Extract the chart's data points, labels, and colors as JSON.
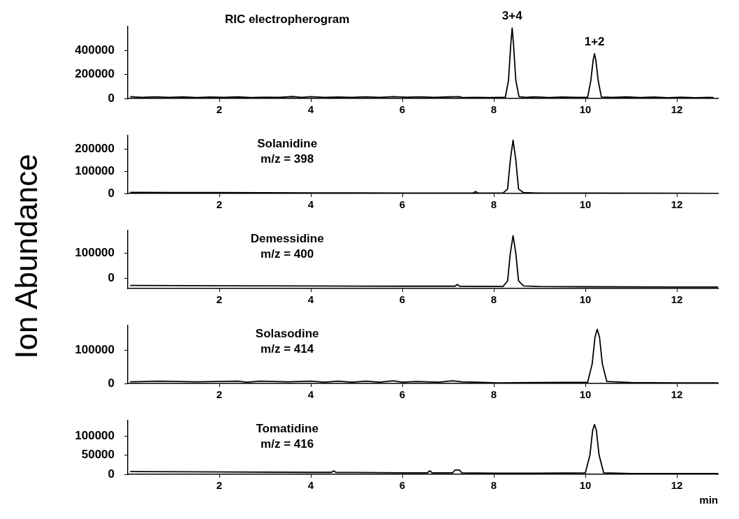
{
  "chart_data": [
    {
      "type": "line",
      "title": "RIC electropherogram",
      "ylabel": "Ion Abundance",
      "xlim": [
        0,
        12.9
      ],
      "xticks": [
        2,
        4,
        6,
        8,
        10,
        12
      ],
      "ylim": [
        0,
        600000
      ],
      "yticks": [
        0,
        200000,
        400000
      ],
      "grid": false,
      "legend": false,
      "marker": "none",
      "annotations": [
        {
          "text": "3+4",
          "x": 8.4,
          "y": 587000
        },
        {
          "text": "1+2",
          "x": 10.2,
          "y": 373000
        }
      ],
      "series": [
        {
          "color": "#000000",
          "x": [
            0.05,
            0.3,
            0.6,
            0.9,
            1.2,
            1.5,
            1.8,
            2.1,
            2.4,
            2.7,
            3.0,
            3.3,
            3.6,
            3.8,
            4.0,
            4.3,
            4.6,
            4.9,
            5.2,
            5.5,
            5.8,
            6.1,
            6.4,
            6.7,
            7.0,
            7.25,
            7.3,
            7.6,
            7.9,
            8.1,
            8.25,
            8.32,
            8.37,
            8.4,
            8.43,
            8.48,
            8.55,
            8.7,
            8.9,
            9.2,
            9.5,
            9.8,
            10.05,
            10.12,
            10.17,
            10.2,
            10.23,
            10.28,
            10.35,
            10.6,
            10.9,
            11.2,
            11.5,
            11.8,
            12.1,
            12.4,
            12.7,
            12.8
          ],
          "values": [
            15000,
            10000,
            14000,
            9000,
            13000,
            8000,
            12000,
            9000,
            13000,
            8000,
            11000,
            9000,
            16000,
            10000,
            15000,
            9000,
            12000,
            10000,
            14000,
            10000,
            15000,
            11000,
            14000,
            10000,
            13000,
            15000,
            8000,
            10000,
            8000,
            9000,
            10000,
            150000,
            450000,
            587000,
            450000,
            150000,
            15000,
            9000,
            14000,
            8000,
            12000,
            9000,
            10000,
            150000,
            320000,
            373000,
            320000,
            150000,
            12000,
            9000,
            13000,
            8000,
            12000,
            7000,
            11000,
            6000,
            9000,
            8000
          ]
        }
      ]
    },
    {
      "type": "line",
      "title": "Solanidine",
      "subtitle": "m/z = 398",
      "xlim": [
        0,
        12.9
      ],
      "xticks": [
        2,
        4,
        6,
        8,
        10,
        12
      ],
      "ylim": [
        0,
        260000
      ],
      "yticks": [
        0,
        100000,
        200000
      ],
      "grid": false,
      "legend": false,
      "marker": "none",
      "series": [
        {
          "color": "#000000",
          "x": [
            0.05,
            2,
            4,
            6,
            7.55,
            7.6,
            7.65,
            8.2,
            8.3,
            8.36,
            8.42,
            8.48,
            8.54,
            8.65,
            9,
            10,
            12,
            12.9
          ],
          "values": [
            5000,
            4000,
            3000,
            2000,
            2000,
            9000,
            2000,
            2000,
            20000,
            150000,
            240000,
            150000,
            20000,
            4000,
            2000,
            1500,
            1000,
            500
          ]
        }
      ]
    },
    {
      "type": "line",
      "title": "Demessidine",
      "subtitle": "m/z = 400",
      "xlim": [
        0,
        12.9
      ],
      "xticks": [
        2,
        4,
        6,
        8,
        10,
        12
      ],
      "ylim": [
        -40000,
        190000
      ],
      "yticks": [
        0,
        100000
      ],
      "grid": false,
      "legend": false,
      "marker": "none",
      "series": [
        {
          "color": "#000000",
          "x": [
            0.05,
            2,
            4,
            6,
            7.15,
            7.2,
            7.25,
            8.2,
            8.3,
            8.36,
            8.42,
            8.48,
            8.54,
            8.65,
            9,
            10,
            12,
            12.9
          ],
          "values": [
            -28000,
            -29000,
            -30000,
            -31000,
            -31000,
            -24000,
            -31000,
            -32000,
            -10000,
            100000,
            170000,
            100000,
            -10000,
            -30000,
            -32000,
            -33000,
            -34000,
            -34000
          ]
        }
      ]
    },
    {
      "type": "line",
      "title": "Solasodine",
      "subtitle": "m/z = 414",
      "xlim": [
        0,
        12.9
      ],
      "xticks": [
        2,
        4,
        6,
        8,
        10,
        12
      ],
      "ylim": [
        0,
        175000
      ],
      "yticks": [
        0,
        100000
      ],
      "grid": false,
      "legend": false,
      "marker": "none",
      "series": [
        {
          "color": "#000000",
          "x": [
            0.05,
            0.7,
            1.5,
            2.4,
            2.6,
            2.9,
            3.5,
            4.0,
            4.3,
            4.6,
            4.9,
            5.2,
            5.5,
            5.8,
            6.0,
            6.3,
            6.8,
            7.1,
            7.3,
            7.6,
            8.1,
            9,
            10.05,
            10.15,
            10.21,
            10.26,
            10.31,
            10.37,
            10.47,
            11,
            12,
            12.9
          ],
          "values": [
            5000,
            7000,
            5000,
            7000,
            4000,
            7000,
            5000,
            7000,
            4000,
            7000,
            4000,
            7000,
            4000,
            8000,
            4000,
            6000,
            4000,
            8000,
            5000,
            4000,
            2000,
            3000,
            4000,
            60000,
            140000,
            164000,
            140000,
            60000,
            6000,
            3000,
            2000,
            2000
          ]
        }
      ]
    },
    {
      "type": "line",
      "title": "Tomatidine",
      "subtitle": "m/z = 416",
      "xlabel": "min",
      "xlim": [
        0,
        12.9
      ],
      "xticks": [
        2,
        4,
        6,
        8,
        10,
        12
      ],
      "ylim": [
        0,
        140000
      ],
      "yticks": [
        0,
        50000,
        100000
      ],
      "grid": false,
      "legend": false,
      "marker": "none",
      "series": [
        {
          "color": "#000000",
          "x": [
            0.05,
            2,
            4,
            4.45,
            4.5,
            4.55,
            6,
            6.55,
            6.6,
            6.65,
            7.1,
            7.15,
            7.25,
            7.3,
            8,
            9,
            10.0,
            10.1,
            10.16,
            10.2,
            10.24,
            10.3,
            10.4,
            11,
            12,
            12.9
          ],
          "values": [
            7000,
            6000,
            5000,
            5000,
            9000,
            5000,
            4000,
            4000,
            9000,
            4000,
            4000,
            11000,
            11000,
            4000,
            3000,
            3000,
            4000,
            50000,
            115000,
            130000,
            115000,
            50000,
            4000,
            2000,
            2000,
            2000
          ]
        }
      ]
    }
  ]
}
